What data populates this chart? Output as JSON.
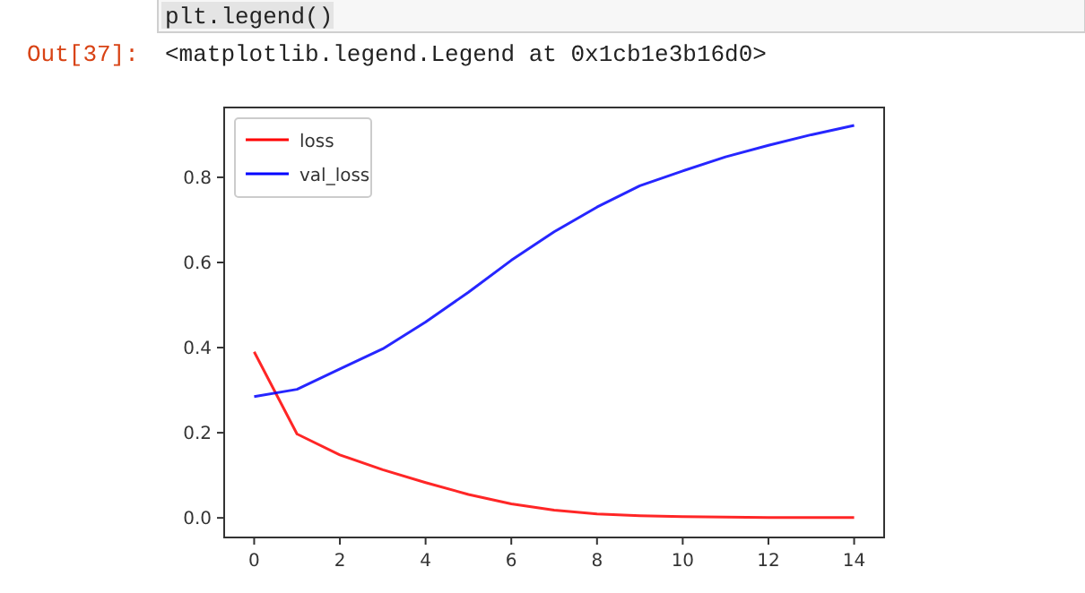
{
  "chart_data": {
    "type": "line",
    "annotations": [
      "plt.legend()",
      "Out[37]:",
      "<matplotlib.legend.Legend at 0x1cb1e3b16d0>"
    ],
    "x": [
      0,
      1,
      2,
      3,
      4,
      5,
      6,
      7,
      8,
      9,
      10,
      11,
      12,
      13,
      14
    ],
    "series": [
      {
        "name": "loss",
        "color": "#ff0000",
        "values": [
          0.39,
          0.197,
          0.148,
          0.113,
          0.083,
          0.055,
          0.033,
          0.018,
          0.009,
          0.005,
          0.003,
          0.002,
          0.001,
          0.001,
          0.001
        ]
      },
      {
        "name": "val_loss",
        "color": "#0000ff",
        "values": [
          0.285,
          0.302,
          0.35,
          0.397,
          0.46,
          0.53,
          0.605,
          0.672,
          0.73,
          0.78,
          0.815,
          0.848,
          0.875,
          0.9,
          0.922
        ]
      }
    ],
    "xlim": [
      -0.7,
      14.7
    ],
    "ylim": [
      -0.046,
      0.964
    ],
    "xticks": [
      0,
      2,
      4,
      6,
      8,
      10,
      12,
      14
    ],
    "yticks": [
      {
        "value": 0,
        "label": "0.0"
      },
      {
        "value": 0.2,
        "label": "0.2"
      },
      {
        "value": 0.4,
        "label": "0.4"
      },
      {
        "value": 0.6,
        "label": "0.6"
      },
      {
        "value": 0.8,
        "label": "0.8"
      }
    ],
    "legend": "top left",
    "grid": false,
    "marker": "none",
    "line_style": "solid"
  }
}
